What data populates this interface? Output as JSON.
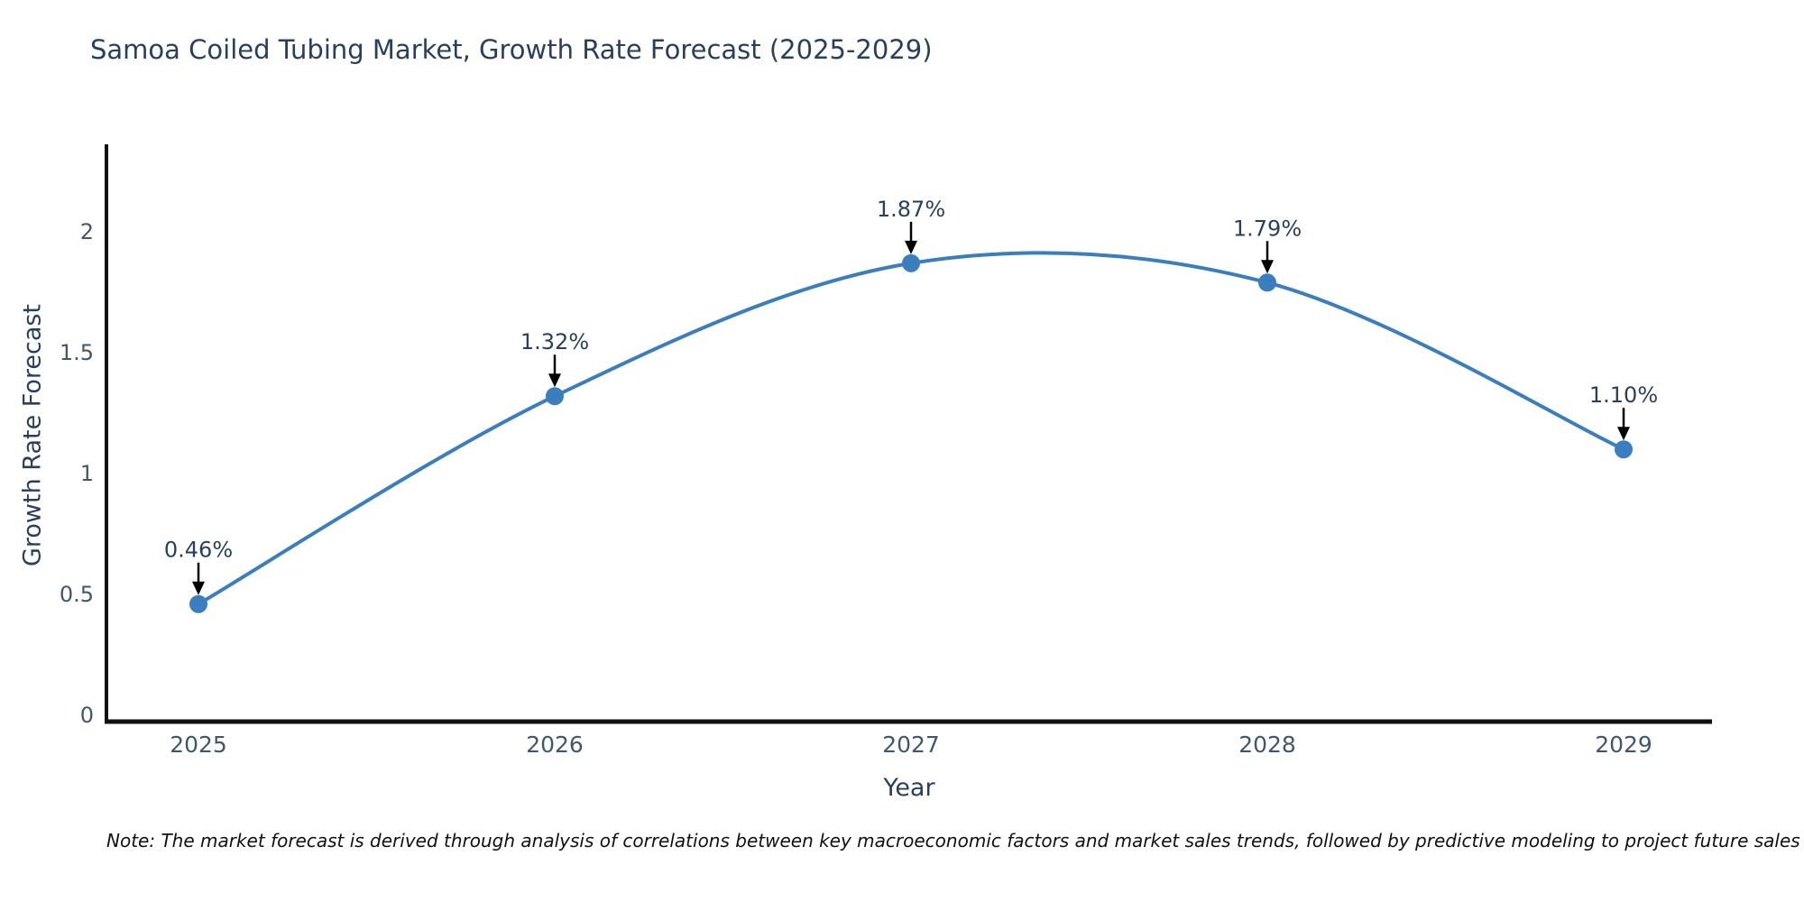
{
  "chart_data": {
    "type": "line",
    "title": "Samoa Coiled Tubing Market, Growth Rate Forecast (2025-2029)",
    "xlabel": "Year",
    "ylabel": "Growth Rate Forecast",
    "categories": [
      "2025",
      "2026",
      "2027",
      "2028",
      "2029"
    ],
    "values": [
      0.46,
      1.32,
      1.87,
      1.79,
      1.1
    ],
    "point_labels": [
      "0.46%",
      "1.32%",
      "1.87%",
      "1.79%",
      "1.10%"
    ],
    "y_ticks": [
      "0",
      "0.5",
      "1",
      "1.5",
      "2"
    ],
    "y_tick_values": [
      0,
      0.5,
      1,
      1.5,
      2
    ],
    "ylim": [
      0,
      2.36
    ],
    "grid": false,
    "legend": "none",
    "smoothing": "spline",
    "colors": {
      "line": "#3a7ebf",
      "marker": "#3a7ebf",
      "axis": "#111111",
      "tick_label": "#42576b",
      "annotation_text": "#2a3f5f",
      "annotation_arrow": "#000000",
      "title": "#2a3f5f"
    },
    "note": "Note: The market forecast is derived through analysis of correlations between key macroeconomic factors and market sales trends, followed by predictive modeling to project future sales"
  }
}
